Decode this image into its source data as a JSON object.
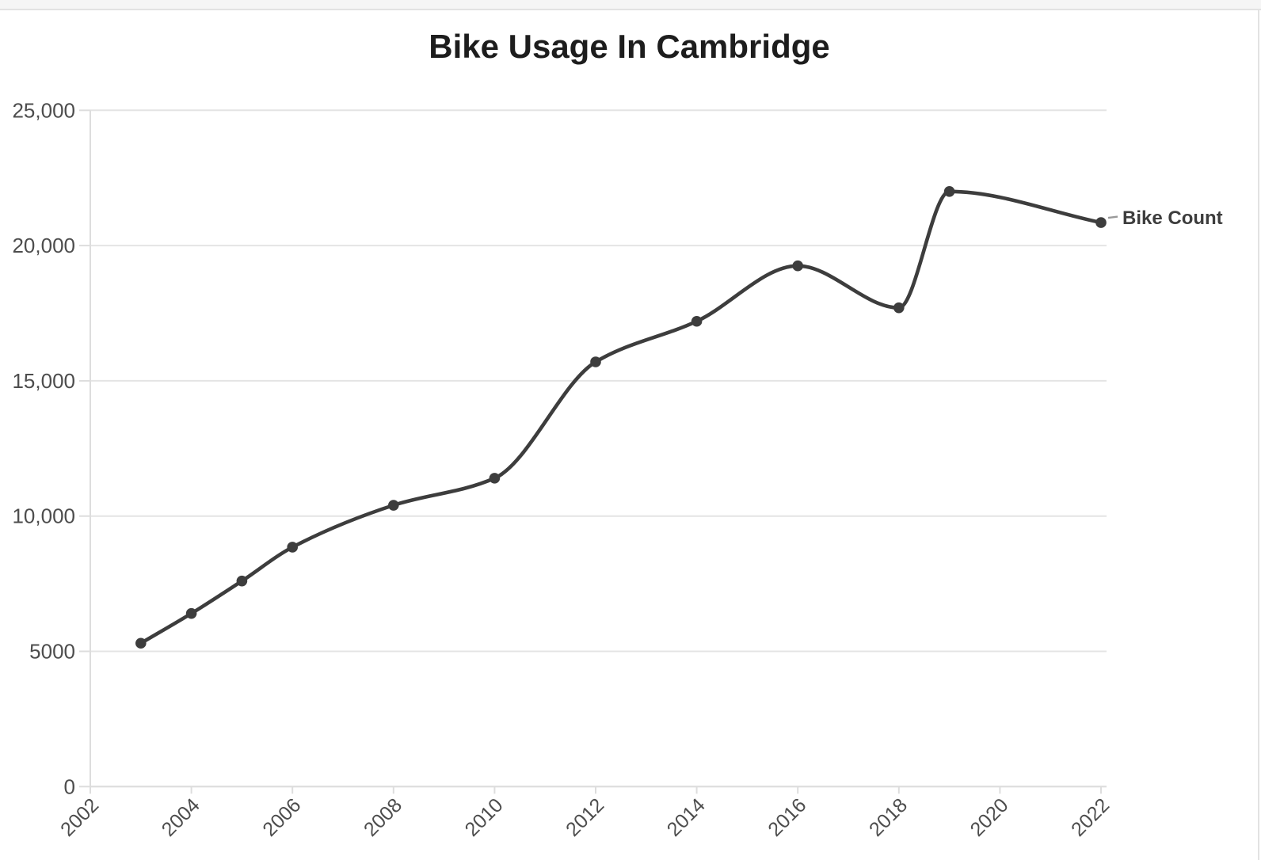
{
  "page": {
    "title": "Bike Usage In Cambridge"
  },
  "chart_data": {
    "type": "line",
    "title": "Bike Usage In Cambridge",
    "xlabel": "",
    "ylabel": "",
    "xlim": [
      2002,
      2022
    ],
    "ylim": [
      0,
      25000
    ],
    "grid": "horizontal",
    "legend_position": "end-of-line",
    "x_ticks": [
      2002,
      2004,
      2006,
      2008,
      2010,
      2012,
      2014,
      2016,
      2018,
      2020,
      2022
    ],
    "x_tick_rotation": -45,
    "y_ticks": [
      {
        "value": 0,
        "label": "0"
      },
      {
        "value": 5000,
        "label": "5000"
      },
      {
        "value": 10000,
        "label": "10,000"
      },
      {
        "value": 15000,
        "label": "15,000"
      },
      {
        "value": 20000,
        "label": "20,000"
      },
      {
        "value": 25000,
        "label": "25,000"
      }
    ],
    "series": [
      {
        "name": "Bike Count",
        "curve": "monotone",
        "marker": "circle",
        "x": [
          2003,
          2004,
          2005,
          2006,
          2008,
          2010,
          2012,
          2014,
          2016,
          2018,
          2019,
          2022
        ],
        "values": [
          5300,
          6400,
          7600,
          8850,
          10400,
          11400,
          15700,
          17200,
          19250,
          17700,
          22000,
          20850
        ]
      }
    ],
    "legend": {
      "label": "Bike Count"
    }
  },
  "colors": {
    "title": "#1d1d1d",
    "tick_label": "#4d4d4d",
    "gridline": "#e4e4e4",
    "axis_line": "#dddddd",
    "series_line": "#3d3d3d",
    "marker_fill": "#3d3d3d",
    "legend_text": "#3d3d3d",
    "legend_connector": "#9a9a9a",
    "top_strip_bg": "#f5f5f5",
    "edge_line": "#e2e2e2"
  }
}
